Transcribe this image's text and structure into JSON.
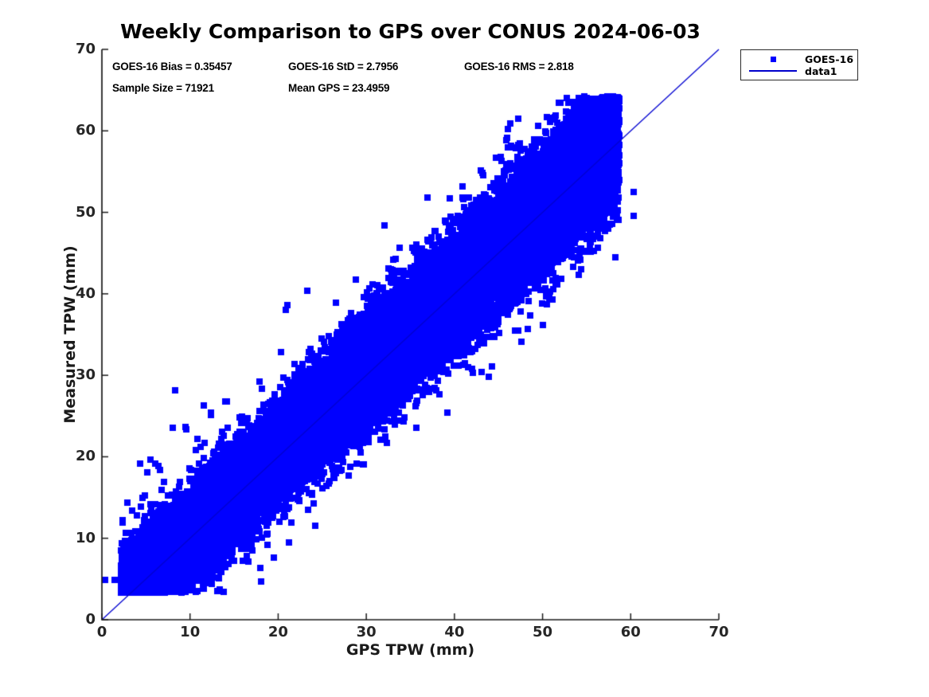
{
  "title": "Weekly Comparison to GPS over CONUS 2024-06-03",
  "stats": {
    "bias": "GOES-16 Bias = 0.35457",
    "std": "GOES-16 StD = 2.7956",
    "rms": "GOES-16 RMS = 2.818",
    "sample_size": "Sample Size = 71921",
    "mean_gps": "Mean GPS = 23.4959"
  },
  "legend": {
    "entries": [
      {
        "label": "GOES-16",
        "icon": "blue-filled-square-marker"
      },
      {
        "label": "data1",
        "icon": "blue-line"
      }
    ]
  },
  "colors": {
    "marker": "#0000FF",
    "line": "#0000D0",
    "axis": "#1a1a1a",
    "tick_text": "#262626"
  },
  "chart_data": {
    "type": "scatter",
    "title": "Weekly Comparison to GPS over CONUS 2024-06-03",
    "xlabel": "GPS TPW (mm)",
    "ylabel": "Measured TPW (mm)",
    "xlim": [
      0,
      70
    ],
    "ylim": [
      0,
      70
    ],
    "xticks": [
      0,
      10,
      20,
      30,
      40,
      50,
      60,
      70
    ],
    "yticks": [
      0,
      10,
      20,
      30,
      40,
      50,
      60,
      70
    ],
    "grid": false,
    "legend_position": "outside-top-right",
    "annotations": [
      "GOES-16 Bias = 0.35457",
      "GOES-16 StD = 2.7956",
      "GOES-16 RMS = 2.818",
      "Sample Size = 71921",
      "Mean GPS = 23.4959"
    ],
    "series": [
      {
        "name": "GOES-16",
        "type": "scatter",
        "marker": "filled-square",
        "marker_px": 8,
        "color": "#0000FF",
        "sample_size": 71921,
        "bias": 0.35457,
        "std": 2.7956,
        "rms": 2.818,
        "mean_gps": 23.4959,
        "x_range_observed": [
          0.3,
          60.5
        ],
        "y_range_observed": [
          3.3,
          64.0
        ],
        "scatter_model": {
          "relation": "y = x + bias + N(0, std_effective); dense diagonal cloud",
          "seed": 20240603,
          "n_render": 42000,
          "x_min": 2.2,
          "x_span": 56.5,
          "x_exponent": 1.5,
          "std_scale_a": 0.78,
          "std_scale_b": 0.011,
          "outlier_frac": 0.015,
          "outlier_std": 5.8,
          "y_floor": 3.35,
          "y_ceil": 64.2
        },
        "extra_points": [
          [
            0.35,
            4.9
          ],
          [
            1.45,
            4.9
          ],
          [
            60.3,
            52.5
          ],
          [
            60.3,
            49.6
          ],
          [
            57.4,
            63.8
          ],
          [
            55.8,
            63.1
          ],
          [
            57.9,
            59.3
          ],
          [
            58.2,
            56.2
          ],
          [
            46.3,
            60.9
          ],
          [
            47.2,
            61.5
          ],
          [
            21.0,
            38.6
          ],
          [
            23.3,
            40.4
          ],
          [
            20.9,
            38.0
          ]
        ]
      },
      {
        "name": "data1",
        "type": "line",
        "color": "#0000D0",
        "points": [
          [
            0,
            0
          ],
          [
            70,
            70
          ]
        ],
        "description": "identity reference line y = x"
      }
    ]
  }
}
